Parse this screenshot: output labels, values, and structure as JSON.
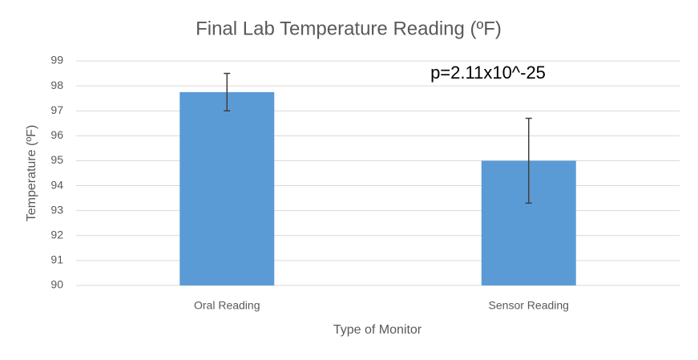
{
  "chart_data": {
    "type": "bar",
    "title": "Final Lab Temperature  Reading (ºF)",
    "x_label": "Type of Monitor",
    "y_label": "Temperature (ºF)",
    "annotation": "p=2.11x10^-25",
    "categories": [
      "Oral Reading",
      "Sensor Reading"
    ],
    "values": [
      97.75,
      95.0
    ],
    "errors": [
      0.75,
      1.7
    ],
    "color": "#5b9bd5",
    "ylim": [
      90,
      99
    ],
    "yticks": [
      90,
      91,
      92,
      93,
      94,
      95,
      96,
      97,
      98,
      99
    ],
    "grid": true
  }
}
